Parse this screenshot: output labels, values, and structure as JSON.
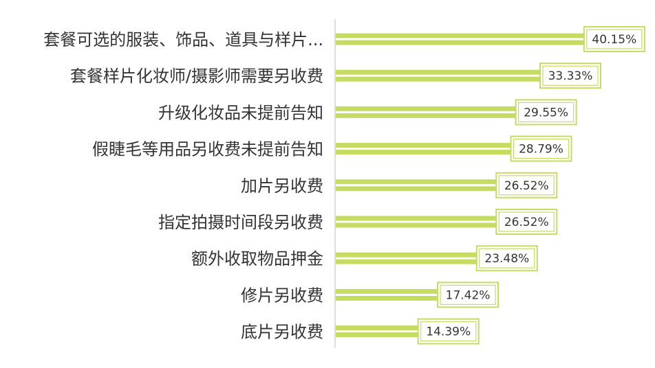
{
  "chart_data": {
    "type": "bar",
    "orientation": "horizontal",
    "categories": [
      "套餐可选的服装、饰品、道具与样片...",
      "套餐样片化妆师/摄影师需要另收费",
      "升级化妆品未提前告知",
      "假睫毛等用品另收费未提前告知",
      "加片另收费",
      "指定拍摄时间段另收费",
      "额外收取物品押金",
      "修片另收费",
      "底片另收费"
    ],
    "values": [
      40.15,
      33.33,
      29.55,
      28.79,
      26.52,
      26.52,
      23.48,
      17.42,
      14.39
    ],
    "value_labels": [
      "40.15%",
      "33.33%",
      "29.55%",
      "28.79%",
      "26.52%",
      "26.52%",
      "23.48%",
      "17.42%",
      "14.39%"
    ],
    "xlim": [
      0,
      48.5
    ],
    "grid": false,
    "legend": "none",
    "colors": {
      "bar": "#c5dc62",
      "label_border": "#c5dc62",
      "axis": "#d0d0d0",
      "text": "#333333"
    }
  }
}
